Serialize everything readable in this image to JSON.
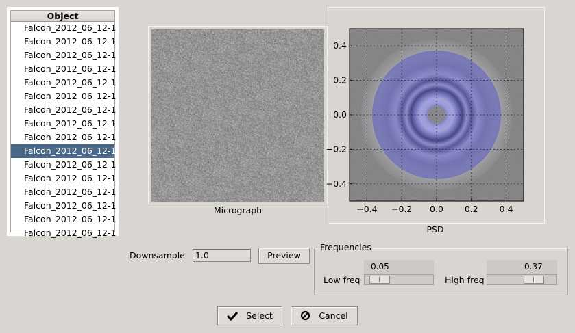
{
  "object_list": {
    "header": "Object",
    "items": [
      "Falcon_2012_06_12-1",
      "Falcon_2012_06_12-1",
      "Falcon_2012_06_12-1",
      "Falcon_2012_06_12-1",
      "Falcon_2012_06_12-1",
      "Falcon_2012_06_12-1",
      "Falcon_2012_06_12-1",
      "Falcon_2012_06_12-1",
      "Falcon_2012_06_12-1",
      "Falcon_2012_06_12-1",
      "Falcon_2012_06_12-1",
      "Falcon_2012_06_12-1",
      "Falcon_2012_06_12-1",
      "Falcon_2012_06_12-1",
      "Falcon_2012_06_12-1",
      "Falcon_2012_06_12-1"
    ],
    "selected_index": 9
  },
  "micrograph": {
    "caption": "Micrograph"
  },
  "psd": {
    "caption": "PSD",
    "xticks": [
      "−0.4",
      "−0.2",
      "0.0",
      "0.2",
      "0.4"
    ],
    "yticks": [
      "0.4",
      "0.2",
      "0.0",
      "−0.2",
      "−0.4"
    ],
    "tick_values": [
      -0.4,
      -0.2,
      0.0,
      0.2,
      0.4
    ],
    "range": [
      -0.5,
      0.5
    ],
    "low_freq": 0.05,
    "high_freq": 0.37,
    "grid": true
  },
  "downsample": {
    "label": "Downsample",
    "value": "1.0"
  },
  "preview_button": {
    "label": "Preview"
  },
  "frequencies": {
    "title": "Frequencies",
    "low": {
      "label": "Low freq",
      "value": "0.05",
      "fraction": 0.05
    },
    "high": {
      "label": "High freq",
      "value": "0.37",
      "fraction": 0.37
    }
  },
  "buttons": {
    "select": "Select",
    "cancel": "Cancel"
  },
  "colors": {
    "selection": "#4a6887",
    "mask": "#4a4ac8",
    "window": "#d9d5d0"
  }
}
